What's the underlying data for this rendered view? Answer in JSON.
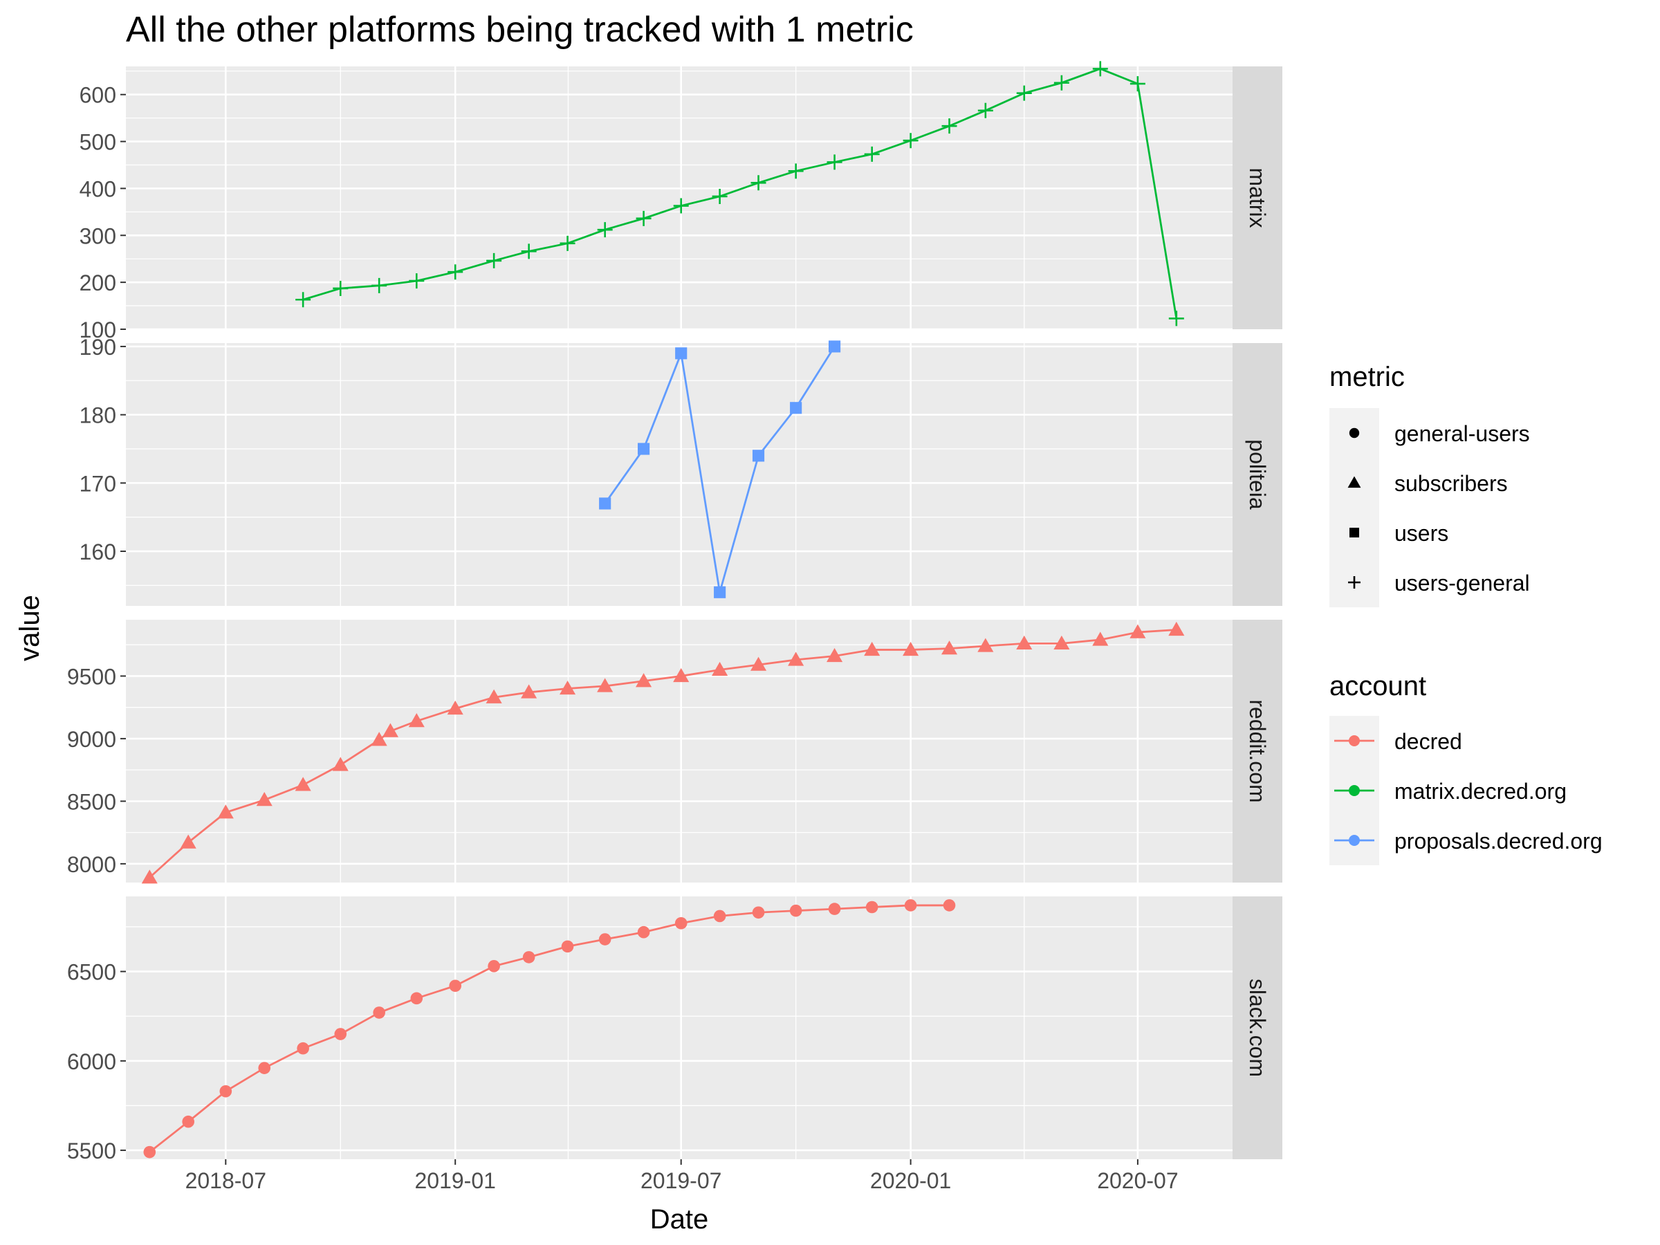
{
  "chart_data": {
    "type": "line",
    "title": "All the other platforms being tracked with 1 metric",
    "xlabel": "Date",
    "ylabel": "value",
    "x_ticks": [
      "2018-07",
      "2019-01",
      "2019-07",
      "2020-01",
      "2020-07"
    ],
    "x_range": [
      "2018-04-12",
      "2020-09-15"
    ],
    "grid": true,
    "legend_position": "right",
    "legends": [
      {
        "title": "metric",
        "entries": [
          {
            "label": "general-users",
            "shape": "circle"
          },
          {
            "label": "subscribers",
            "shape": "triangle"
          },
          {
            "label": "users",
            "shape": "square"
          },
          {
            "label": "users-general",
            "shape": "plus"
          }
        ]
      },
      {
        "title": "account",
        "entries": [
          {
            "label": "decred",
            "color": "#F8766D"
          },
          {
            "label": "matrix.decred.org",
            "color": "#00BA38"
          },
          {
            "label": "proposals.decred.org",
            "color": "#619CFF"
          }
        ]
      }
    ],
    "facets": [
      {
        "strip": "matrix",
        "ylim": [
          100,
          660
        ],
        "y_ticks": [
          100,
          200,
          300,
          400,
          500,
          600
        ],
        "series": [
          {
            "account": "matrix.decred.org",
            "metric": "users-general",
            "color": "#00BA38",
            "shape": "plus",
            "x": [
              "2018-09-01",
              "2018-10-01",
              "2018-11-01",
              "2018-12-01",
              "2019-01-01",
              "2019-02-01",
              "2019-03-01",
              "2019-04-01",
              "2019-05-01",
              "2019-06-01",
              "2019-07-01",
              "2019-08-01",
              "2019-09-01",
              "2019-10-01",
              "2019-11-01",
              "2019-12-01",
              "2020-01-01",
              "2020-02-01",
              "2020-03-01",
              "2020-04-01",
              "2020-05-01",
              "2020-06-01",
              "2020-07-01",
              "2020-08-01"
            ],
            "y": [
              163,
              187,
              193,
              203,
              222,
              246,
              266,
              283,
              312,
              336,
              363,
              383,
              412,
              437,
              456,
              473,
              502,
              533,
              566,
              603,
              625,
              655,
              623,
              123
            ]
          }
        ]
      },
      {
        "strip": "politeia",
        "ylim": [
          152,
          190.5
        ],
        "y_ticks": [
          160,
          170,
          180,
          190
        ],
        "series": [
          {
            "account": "proposals.decred.org",
            "metric": "users",
            "color": "#619CFF",
            "shape": "square",
            "x": [
              "2019-05-01",
              "2019-06-01",
              "2019-07-01",
              "2019-08-01",
              "2019-09-01",
              "2019-10-01",
              "2019-11-01"
            ],
            "y": [
              167,
              175,
              189,
              154,
              174,
              181,
              190
            ]
          }
        ]
      },
      {
        "strip": "reddit.com",
        "ylim": [
          7850,
          9950
        ],
        "y_ticks": [
          8000,
          8500,
          9000,
          9500
        ],
        "series": [
          {
            "account": "decred",
            "metric": "subscribers",
            "color": "#F8766D",
            "shape": "triangle",
            "x": [
              "2018-05-01",
              "2018-06-01",
              "2018-07-01",
              "2018-08-01",
              "2018-09-01",
              "2018-10-01",
              "2018-11-01",
              "2018-11-10",
              "2018-12-01",
              "2019-01-01",
              "2019-02-01",
              "2019-03-01",
              "2019-04-01",
              "2019-05-01",
              "2019-06-01",
              "2019-07-01",
              "2019-08-01",
              "2019-09-01",
              "2019-10-01",
              "2019-11-01",
              "2019-12-01",
              "2020-01-01",
              "2020-02-01",
              "2020-03-01",
              "2020-04-01",
              "2020-05-01",
              "2020-06-01",
              "2020-07-01",
              "2020-08-01"
            ],
            "y": [
              7890,
              8170,
              8410,
              8510,
              8630,
              8790,
              8990,
              9060,
              9140,
              9240,
              9330,
              9370,
              9400,
              9420,
              9460,
              9500,
              9550,
              9590,
              9630,
              9660,
              9710,
              9710,
              9720,
              9740,
              9760,
              9760,
              9790,
              9850,
              9870
            ]
          }
        ]
      },
      {
        "strip": "slack.com",
        "ylim": [
          5450,
          6920
        ],
        "y_ticks": [
          5500,
          6000,
          6500
        ],
        "series": [
          {
            "account": "decred",
            "metric": "general-users",
            "color": "#F8766D",
            "shape": "circle",
            "x": [
              "2018-05-01",
              "2018-06-01",
              "2018-07-01",
              "2018-08-01",
              "2018-09-01",
              "2018-10-01",
              "2018-11-01",
              "2018-12-01",
              "2019-01-01",
              "2019-02-01",
              "2019-03-01",
              "2019-04-01",
              "2019-05-01",
              "2019-06-01",
              "2019-07-01",
              "2019-08-01",
              "2019-09-01",
              "2019-10-01",
              "2019-11-01",
              "2019-12-01",
              "2020-01-01",
              "2020-02-01"
            ],
            "y": [
              5490,
              5660,
              5830,
              5960,
              6070,
              6150,
              6270,
              6350,
              6420,
              6530,
              6580,
              6640,
              6680,
              6720,
              6770,
              6810,
              6830,
              6840,
              6850,
              6860,
              6870,
              6870
            ]
          }
        ]
      }
    ]
  }
}
